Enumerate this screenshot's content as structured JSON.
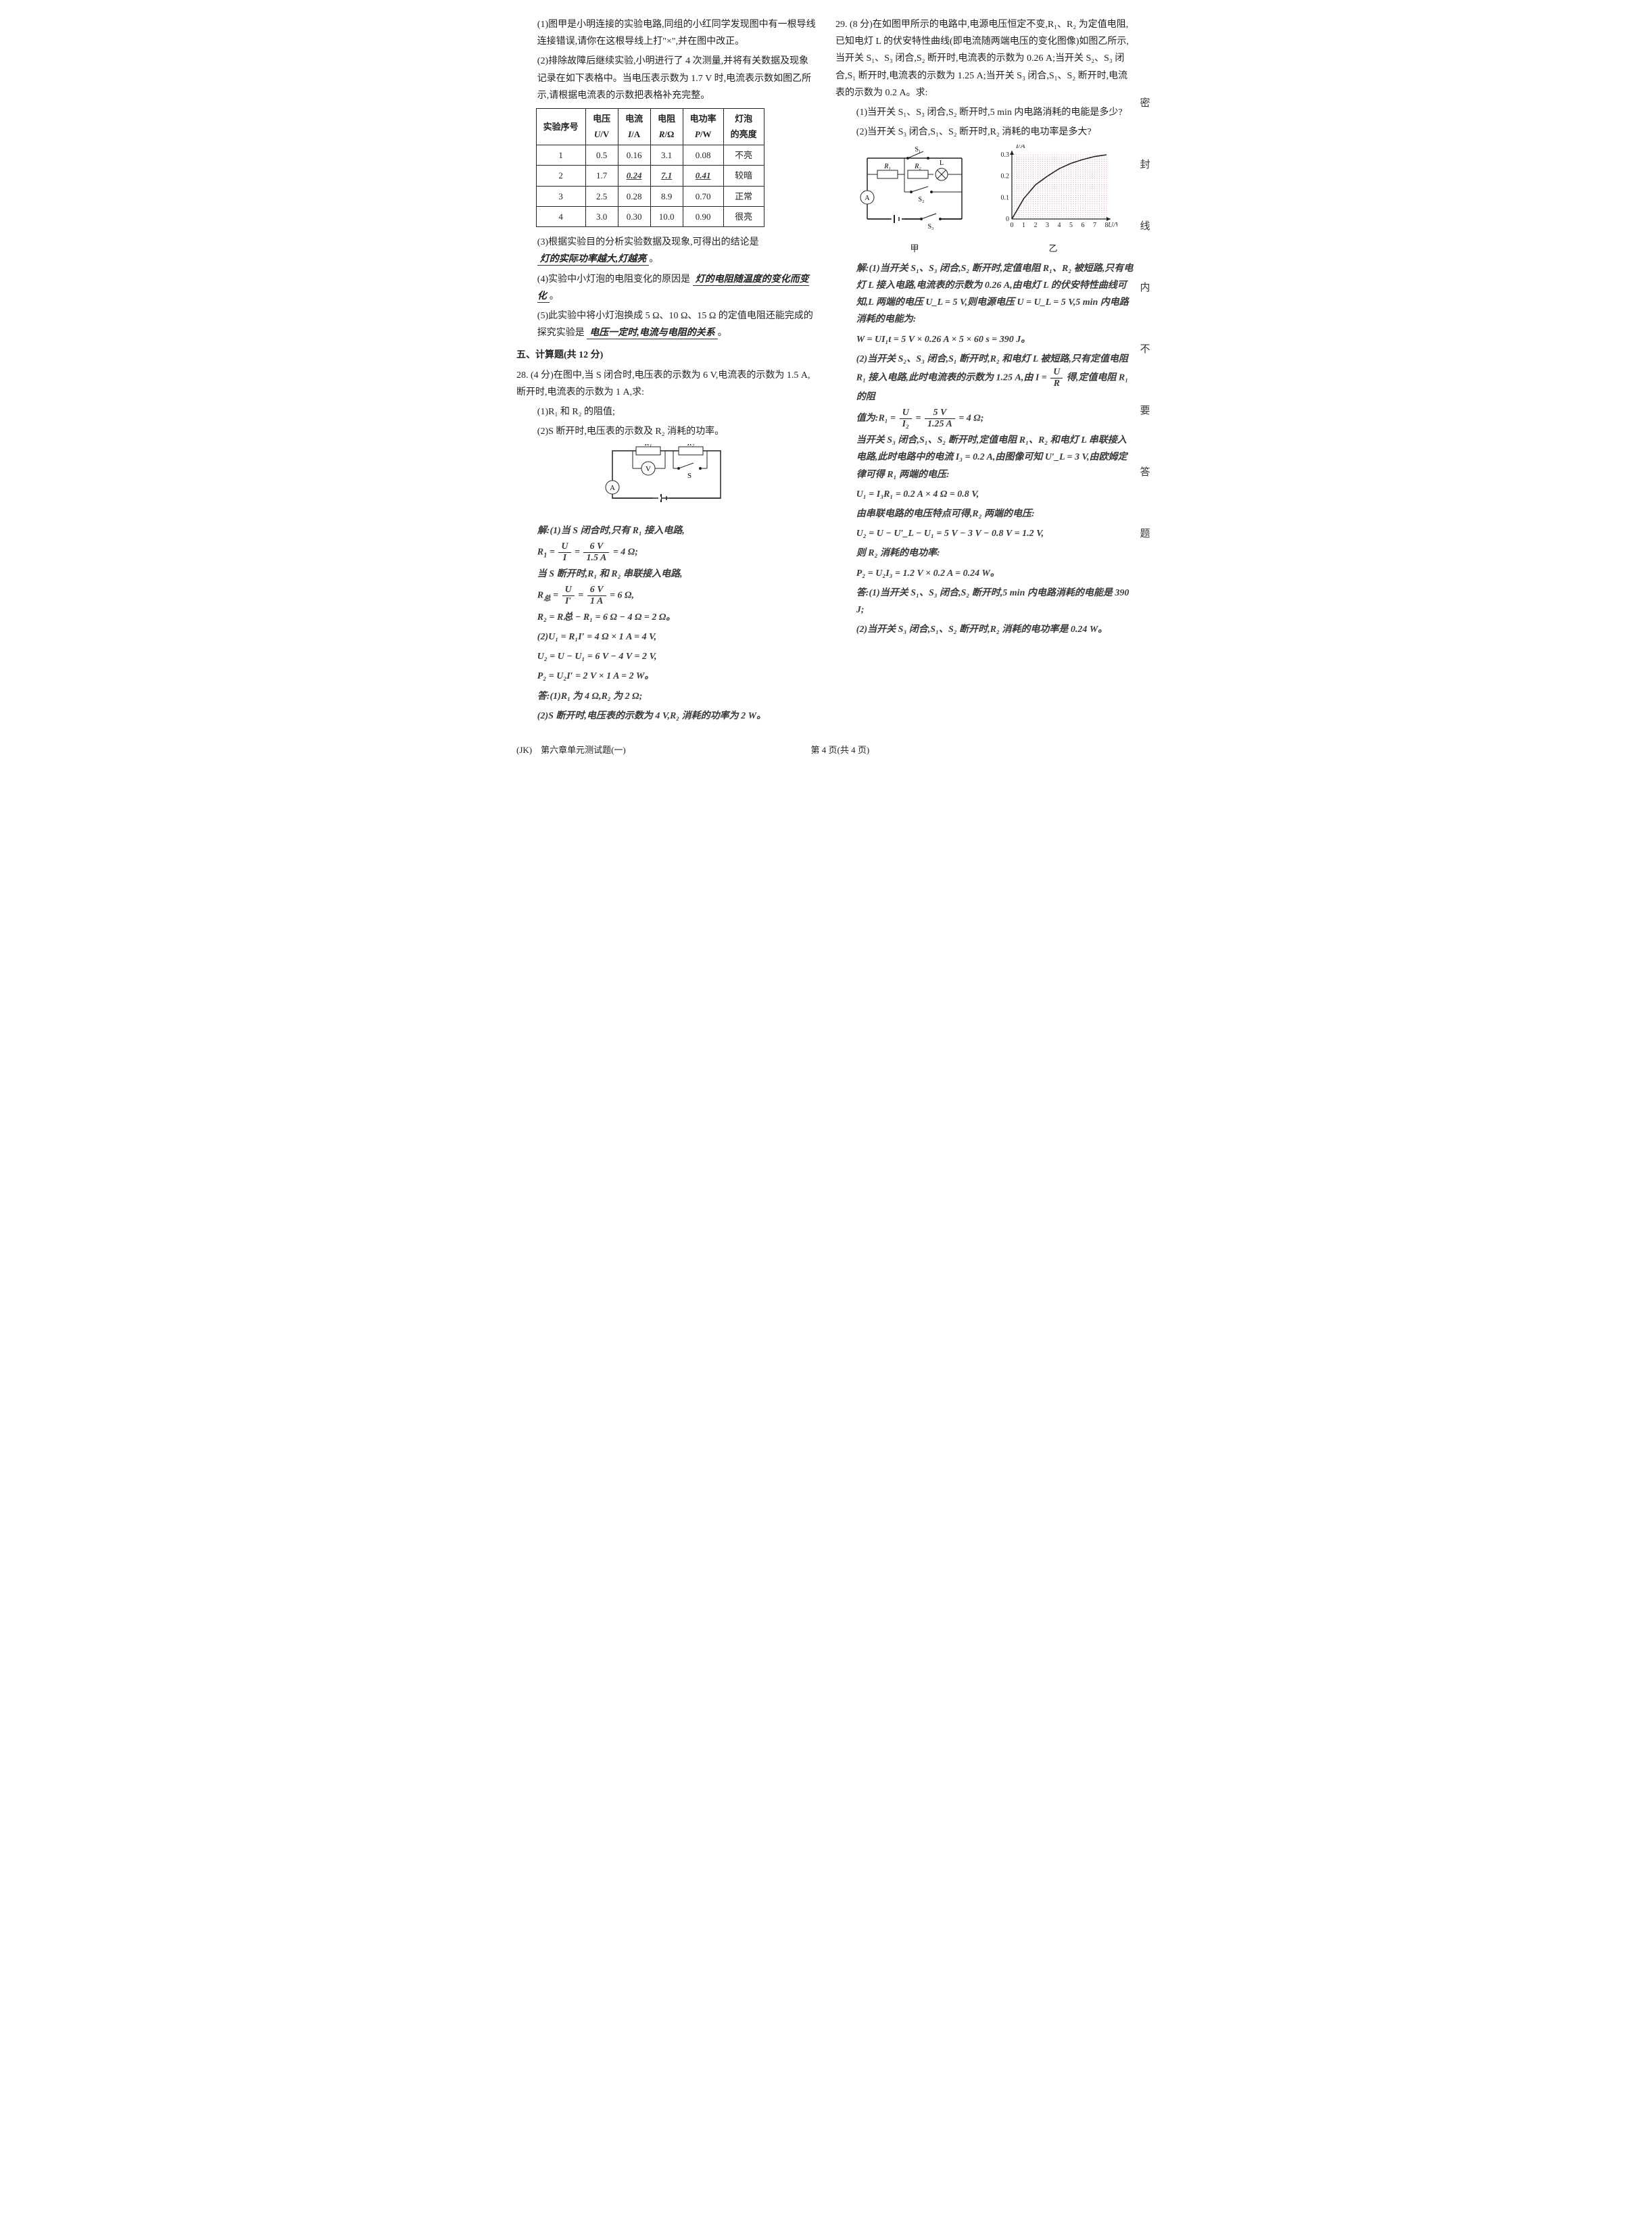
{
  "page": {
    "footer_left": "(JK)　第六章单元测试题(一)",
    "footer_center": "第 4 页(共 4 页)"
  },
  "side_margin_chars": [
    "密",
    "封",
    "线",
    "内",
    "不",
    "要",
    "答",
    "题"
  ],
  "left": {
    "p1": "(1)图甲是小明连接的实验电路,同组的小红同学发现图中有一根导线连接错误,请你在这根导线上打\"×\",并在图中改正。",
    "p2_a": "(2)排除故障后继续实验,小明进行了 4 次测量,并将有关数据及现象记录在如下表格中。当电压表示数为 1.7 V 时,电流表示数如图乙所示,请根据电流表的示数把表格补充完整。",
    "table": {
      "headers": [
        "实验序号",
        "电压\nU/V",
        "电流\nI/A",
        "电阻\nR/Ω",
        "电功率\nP/W",
        "灯泡的亮度"
      ],
      "rows": [
        [
          "1",
          "0.5",
          "0.16",
          "3.1",
          "0.08",
          "不亮"
        ],
        [
          "2",
          "1.7",
          "0.24",
          "7.1",
          "0.41",
          "较暗"
        ],
        [
          "3",
          "2.5",
          "0.28",
          "8.9",
          "0.70",
          "正常"
        ],
        [
          "4",
          "3.0",
          "0.30",
          "10.0",
          "0.90",
          "很亮"
        ]
      ],
      "row2_ans_cols": [
        2,
        3,
        4
      ]
    },
    "p3_lead": "(3)根据实验目的分析实验数据及现象,可得出的结论是",
    "p3_ans": "灯的实际功率越大,灯越亮",
    "p4_lead": "(4)实验中小灯泡的电阻变化的原因是",
    "p4_ans": "灯的电阻随温度的变化而变化",
    "p5_lead": "(5)此实验中将小灯泡换成 5 Ω、10 Ω、15 Ω 的定值电阻还能完成的探究实验是",
    "p5_ans": "电压一定时,电流与电阻的关系",
    "sec5_head": "五、计算题(共 12 分)",
    "q28_head": "28. (4 分)在图中,当 S 闭合时,电压表的示数为 6 V,电流表的示数为 1.5 A,断开时,电流表的示数为 1 A,求:",
    "q28_1": "(1)R₁ 和 R₂ 的阻值;",
    "q28_2": "(2)S 断开时,电压表的示数及 R₂ 消耗的功率。",
    "q28_circuit_caption": "",
    "q28_sol_1": "解:(1)当 S 闭合时,只有 R₁ 接入电路,",
    "q28_sol_2_lead": "R₁ = ",
    "q28_sol_2_frac_num": "U",
    "q28_sol_2_frac_den": "I",
    "q28_sol_2_mid": " = ",
    "q28_sol_2_frac2_num": "6 V",
    "q28_sol_2_frac2_den": "1.5 A",
    "q28_sol_2_tail": " = 4 Ω;",
    "q28_sol_3": "当 S 断开时,R₁ 和 R₂ 串联接入电路,",
    "q28_sol_4_lead": "R总 = ",
    "q28_sol_4_f1n": "U",
    "q28_sol_4_f1d": "I′",
    "q28_sol_4_mid": " = ",
    "q28_sol_4_f2n": "6 V",
    "q28_sol_4_f2d": "1 A",
    "q28_sol_4_tail": " = 6 Ω,",
    "q28_sol_5": "R₂ = R总 − R₁ = 6 Ω − 4 Ω = 2 Ω。",
    "q28_sol_6": "(2)U₁ = R₁I′ = 4 Ω × 1 A = 4 V,",
    "q28_sol_7": "U₂ = U − U₁ = 6 V − 4 V = 2 V,",
    "q28_sol_8": "P₂ = U₂I′ = 2 V × 1 A = 2 W。",
    "q28_sol_9": "答:(1)R₁ 为 4 Ω,R₂ 为 2 Ω;",
    "q28_sol_10": "(2)S 断开时,电压表的示数为 4 V,R₂ 消耗的功率为 2 W。"
  },
  "right": {
    "q29_head": "29. (8 分)在如图甲所示的电路中,电源电压恒定不变,R₁、R₂ 为定值电阻,已知电灯 L 的伏安特性曲线(即电流随两端电压的变化图像)如图乙所示,当开关 S₁、S₃ 闭合,S₂ 断开时,电流表的示数为 0.26 A;当开关 S₂、S₃ 闭合,S₁ 断开时,电流表的示数为 1.25 A;当开关 S₃ 闭合,S₁、S₂ 断开时,电流表的示数为 0.2 A。求:",
    "q29_1": "(1)当开关 S₁、S₃ 闭合,S₂ 断开时,5 min 内电路消耗的电能是多少?",
    "q29_2": "(2)当开关 S₃ 闭合,S₁、S₂ 断开时,R₂ 消耗的电功率是多大?",
    "fig_cap_left": "甲",
    "fig_cap_right": "乙",
    "graph": {
      "y_label": "I/A",
      "x_label": "U/V",
      "x_ticks": [
        "0",
        "1",
        "2",
        "3",
        "4",
        "5",
        "6",
        "7",
        "8"
      ],
      "y_ticks": [
        "0",
        "0.1",
        "0.2",
        "0.3"
      ],
      "curve_points": [
        [
          0,
          0
        ],
        [
          1,
          0.095
        ],
        [
          2,
          0.16
        ],
        [
          3,
          0.2
        ],
        [
          4,
          0.235
        ],
        [
          5,
          0.26
        ],
        [
          6,
          0.278
        ],
        [
          7,
          0.292
        ],
        [
          8,
          0.3
        ]
      ],
      "grid_color": "#aa3333",
      "axis_color": "#222",
      "curve_color": "#222"
    },
    "sol_1": "解:(1)当开关 S₁、S₃ 闭合,S₂ 断开时,定值电阻 R₁、R₂ 被短路,只有电灯 L 接入电路,电流表的示数为 0.26 A,由电灯 L 的伏安特性曲线可知,L 两端的电压 U_L = 5 V,则电源电压 U = U_L = 5 V,5 min 内电路消耗的电能为:",
    "sol_2": "W = UI₁t = 5 V × 0.26 A × 5 × 60 s = 390 J。",
    "sol_3": "(2)当开关 S₂、S₃ 闭合,S₁ 断开时,R₂ 和电灯 L 被短路,只有定值电阻 R₁ 接入电路,此时电流表的示数为 1.25 A,由 I = ",
    "sol_3_fn": "U",
    "sol_3_fd": "R",
    "sol_3_tail": " 得,定值电阻 R₁ 的阻",
    "sol_4_lead": "值为:R₁ = ",
    "sol_4_f1n": "U",
    "sol_4_f1d": "I₂",
    "sol_4_mid": " = ",
    "sol_4_f2n": "5 V",
    "sol_4_f2d": "1.25 A",
    "sol_4_tail": " = 4 Ω;",
    "sol_5": "当开关 S₃ 闭合,S₁、S₂ 断开时,定值电阻 R₁、R₂ 和电灯 L 串联接入电路,此时电路中的电流 I₃ = 0.2 A,由图像可知 U′_L = 3 V,由欧姆定律可得 R₁ 两端的电压:",
    "sol_6": "U₁ = I₃R₁ = 0.2 A × 4 Ω = 0.8 V,",
    "sol_7": "由串联电路的电压特点可得,R₂ 两端的电压:",
    "sol_8": "U₂ = U − U′_L − U₁ = 5 V − 3 V − 0.8 V = 1.2 V,",
    "sol_9": "则 R₂ 消耗的电功率:",
    "sol_10": "P₂ = U₂I₃ = 1.2 V × 0.2 A = 0.24 W。",
    "sol_11": "答:(1)当开关 S₁、S₃ 闭合,S₂ 断开时,5 min 内电路消耗的电能是 390 J;",
    "sol_12": "(2)当开关 S₃ 闭合,S₁、S₂ 断开时,R₂ 消耗的电功率是 0.24 W。"
  }
}
